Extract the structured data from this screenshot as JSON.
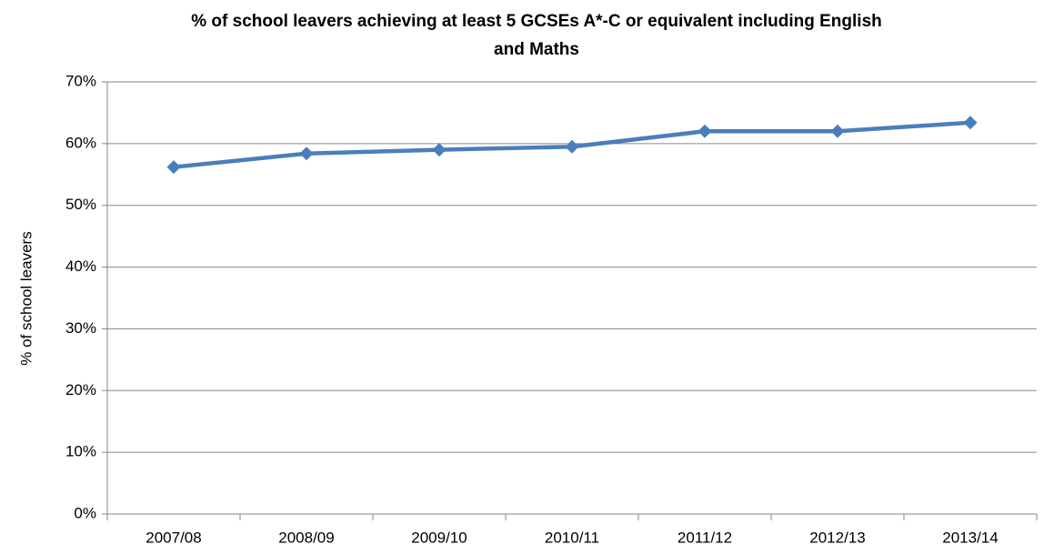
{
  "chart_data": {
    "type": "line",
    "title": [
      "% of school leavers achieving at least  5 GCSEs A*-C or equivalent including English",
      "and Maths"
    ],
    "y_axis_label": "% of school leavers",
    "categories": [
      "2007/08",
      "2008/09",
      "2009/10",
      "2010/11",
      "2011/12",
      "2012/13",
      "2013/14"
    ],
    "series": [
      {
        "name": "% of school leavers",
        "color": "#4a7ebb",
        "values": [
          56.2,
          58.4,
          59.0,
          59.5,
          62.0,
          62.0,
          63.4
        ]
      }
    ],
    "ylim": [
      0,
      70
    ],
    "yticks": [
      {
        "value": 0,
        "label": "0%"
      },
      {
        "value": 10,
        "label": "10%"
      },
      {
        "value": 20,
        "label": "20%"
      },
      {
        "value": 30,
        "label": "30%"
      },
      {
        "value": 40,
        "label": "40%"
      },
      {
        "value": 50,
        "label": "50%"
      },
      {
        "value": 60,
        "label": "60%"
      },
      {
        "value": 70,
        "label": "70%"
      }
    ],
    "grid": true
  }
}
